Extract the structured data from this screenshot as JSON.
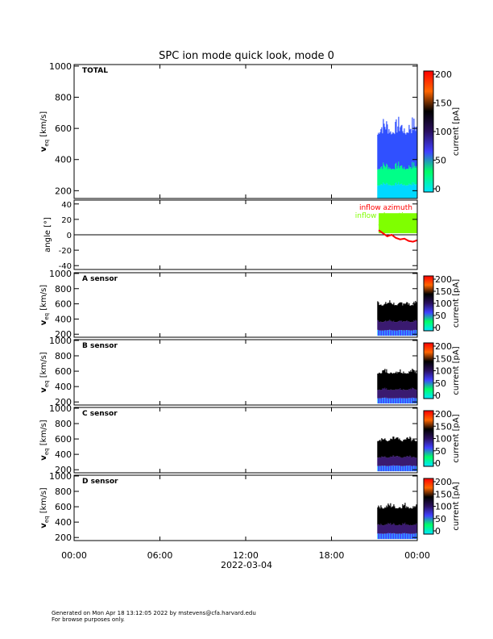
{
  "title": "SPC ion mode quick look, mode 0",
  "footer": {
    "line1": "Generated on Mon Apr 18 13:12:05 2022 by mstevens@cfa.harvard.edu",
    "line2": "For browse purposes only."
  },
  "x_axis": {
    "ticks": [
      "00:00",
      "06:00",
      "12:00",
      "18:00",
      "00:00"
    ],
    "hours": [
      0,
      6,
      12,
      18,
      24
    ],
    "date_label": "2022-03-04",
    "xlim_hours": [
      0,
      24
    ]
  },
  "colorbar": {
    "label": "current [pA]",
    "ticks": [
      0,
      50,
      100,
      150,
      200
    ],
    "range": [
      0,
      200
    ],
    "colors": [
      "#00e5ff",
      "#00ff66",
      "#4040ff",
      "#2a1060",
      "#000000",
      "#ff6600",
      "#ff0000"
    ]
  },
  "chart_data": [
    {
      "type": "heatmap",
      "panel": "TOTAL",
      "label": "TOTAL",
      "ylabel": "v",
      "ylabel_sub": "eq",
      "ylabel_unit": "[km/s]",
      "yticks": [
        200,
        400,
        600,
        800,
        1000
      ],
      "ylim": [
        150,
        1010
      ],
      "data_start_hour": 21.2,
      "data_end_hour": 24,
      "vmin": 150,
      "vmax_range": [
        480,
        680
      ],
      "palette": "total",
      "colorbar_ticks": [
        0,
        50,
        100,
        150,
        200
      ]
    },
    {
      "type": "line",
      "panel": "angle",
      "ylabel": "angle [°]",
      "yticks": [
        -40,
        -20,
        0,
        20,
        40
      ],
      "ylim": [
        -45,
        45
      ],
      "zero_line": true,
      "series": [
        {
          "name": "inflow azimuth",
          "color": "#ff0000",
          "x_hours": [
            21.3,
            21.6,
            21.9,
            22.2,
            22.5,
            22.8,
            23.1,
            23.4,
            23.7,
            24.0
          ],
          "y": [
            6,
            2,
            -2,
            0,
            -4,
            -6,
            -5,
            -8,
            -9,
            -7
          ]
        },
        {
          "name": "inflow elevation",
          "color": "#7fff00",
          "x_hours": [
            21.3,
            21.6,
            21.9,
            22.2,
            22.5,
            22.8,
            23.1,
            23.4,
            23.7,
            24.0
          ],
          "y": [
            12,
            15,
            10,
            14,
            11,
            13,
            9,
            12,
            10,
            11
          ]
        }
      ],
      "legend_placement": "top-right"
    },
    {
      "type": "heatmap",
      "panel": "A sensor",
      "label": "A sensor",
      "ylabel": "v",
      "ylabel_sub": "eq",
      "ylabel_unit": "[km/s]",
      "yticks": [
        200,
        400,
        600,
        800,
        1000
      ],
      "ylim": [
        160,
        1010
      ],
      "data_start_hour": 21.2,
      "data_end_hour": 24,
      "vmin": 180,
      "vmax_range": [
        520,
        660
      ],
      "palette": "sensor",
      "colorbar_ticks": [
        0,
        50,
        100,
        150,
        200
      ]
    },
    {
      "type": "heatmap",
      "panel": "B sensor",
      "label": "B sensor",
      "ylabel": "v",
      "ylabel_sub": "eq",
      "ylabel_unit": "[km/s]",
      "yticks": [
        200,
        400,
        600,
        800,
        1000
      ],
      "ylim": [
        160,
        1010
      ],
      "data_start_hour": 21.2,
      "data_end_hour": 24,
      "vmin": 180,
      "vmax_range": [
        520,
        640
      ],
      "palette": "sensor",
      "colorbar_ticks": [
        0,
        50,
        100,
        150,
        200
      ]
    },
    {
      "type": "heatmap",
      "panel": "C sensor",
      "label": "C sensor",
      "ylabel": "v",
      "ylabel_sub": "eq",
      "ylabel_unit": "[km/s]",
      "yticks": [
        200,
        400,
        600,
        800,
        1000
      ],
      "ylim": [
        160,
        1010
      ],
      "data_start_hour": 21.2,
      "data_end_hour": 24,
      "vmin": 180,
      "vmax_range": [
        520,
        640
      ],
      "palette": "sensor",
      "colorbar_ticks": [
        0,
        50,
        100,
        150,
        200
      ]
    },
    {
      "type": "heatmap",
      "panel": "D sensor",
      "label": "D sensor",
      "ylabel": "v",
      "ylabel_sub": "eq",
      "ylabel_unit": "[km/s]",
      "yticks": [
        200,
        400,
        600,
        800,
        1000
      ],
      "ylim": [
        160,
        1010
      ],
      "data_start_hour": 21.2,
      "data_end_hour": 24,
      "vmin": 180,
      "vmax_range": [
        520,
        660
      ],
      "palette": "sensor",
      "colorbar_ticks": [
        0,
        50,
        100,
        150,
        200
      ]
    }
  ]
}
